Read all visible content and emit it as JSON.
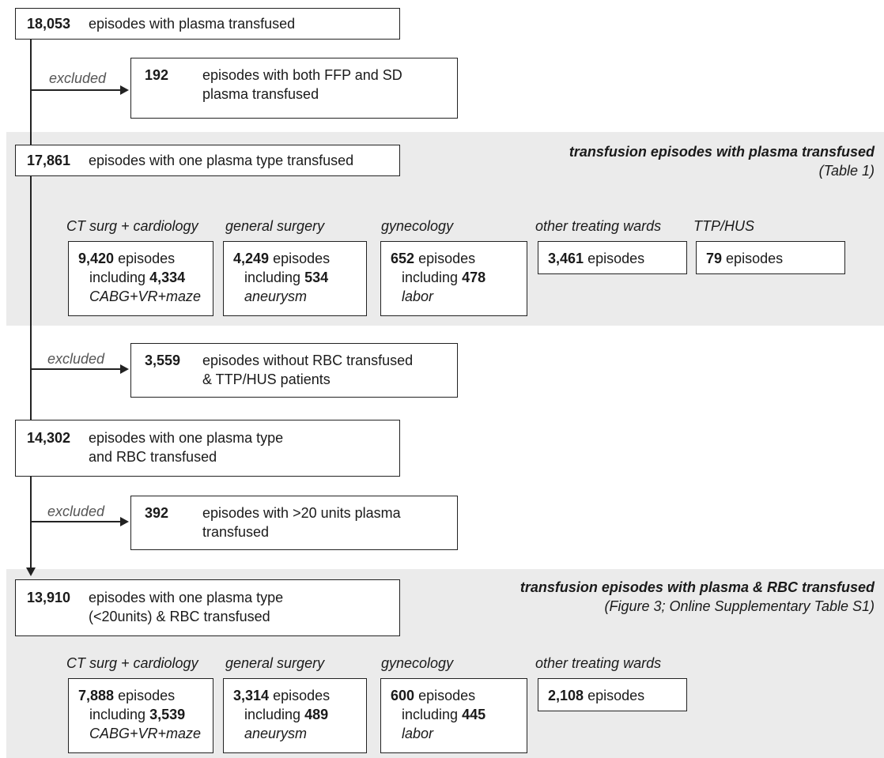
{
  "flow": {
    "start": {
      "count": "18,053",
      "text": "episodes with plasma transfused"
    },
    "exclusion1": {
      "label": "excluded",
      "count": "192",
      "line1": "episodes with both FFP and SD",
      "line2": "plasma transfused"
    },
    "step2": {
      "count": "17,861",
      "text": "episodes with one plasma type transfused"
    },
    "exclusion2": {
      "label": "excluded",
      "count": "3,559",
      "line1": "episodes without RBC transfused",
      "line2": "&  TTP/HUS patients"
    },
    "step3": {
      "count": "14,302",
      "line1": "episodes with one plasma type",
      "line2": "and RBC transfused"
    },
    "exclusion3": {
      "label": "excluded",
      "count": "392",
      "line1": "episodes with >20 units plasma",
      "line2": "transfused"
    },
    "step4": {
      "count": "13,910",
      "line1": "episodes with one plasma type",
      "line2": "(<20units) & RBC transfused"
    }
  },
  "section1": {
    "title": "transfusion episodes with plasma transfused",
    "subtitle": "(Table 1)",
    "wards": [
      {
        "label": "CT surg + cardiology",
        "count": "9,420",
        "episodes": "episodes",
        "including": "including",
        "sub_count": "4,334",
        "sub_label": "CABG+VR+maze"
      },
      {
        "label": "general surgery",
        "count": "4,249",
        "episodes": "episodes",
        "including": "including",
        "sub_count": "534",
        "sub_label": "aneurysm"
      },
      {
        "label": "gynecology",
        "count": "652",
        "episodes": "episodes",
        "including": "including",
        "sub_count": "478",
        "sub_label": "labor"
      },
      {
        "label": "other treating wards",
        "count": "3,461",
        "episodes": "episodes"
      },
      {
        "label": "TTP/HUS",
        "count": "79",
        "episodes": "episodes"
      }
    ]
  },
  "section2": {
    "title": "transfusion episodes with plasma & RBC transfused",
    "subtitle": "(Figure 3; Online Supplementary Table S1)",
    "wards": [
      {
        "label": "CT surg + cardiology",
        "count": "7,888",
        "episodes": "episodes",
        "including": "including",
        "sub_count": "3,539",
        "sub_label": "CABG+VR+maze"
      },
      {
        "label": "general surgery",
        "count": "3,314",
        "episodes": "episodes",
        "including": "including",
        "sub_count": "489",
        "sub_label": "aneurysm"
      },
      {
        "label": "gynecology",
        "count": "600",
        "episodes": "episodes",
        "including": "including",
        "sub_count": "445",
        "sub_label": "labor"
      },
      {
        "label": "other treating wards",
        "count": "2,108",
        "episodes": "episodes"
      }
    ]
  }
}
